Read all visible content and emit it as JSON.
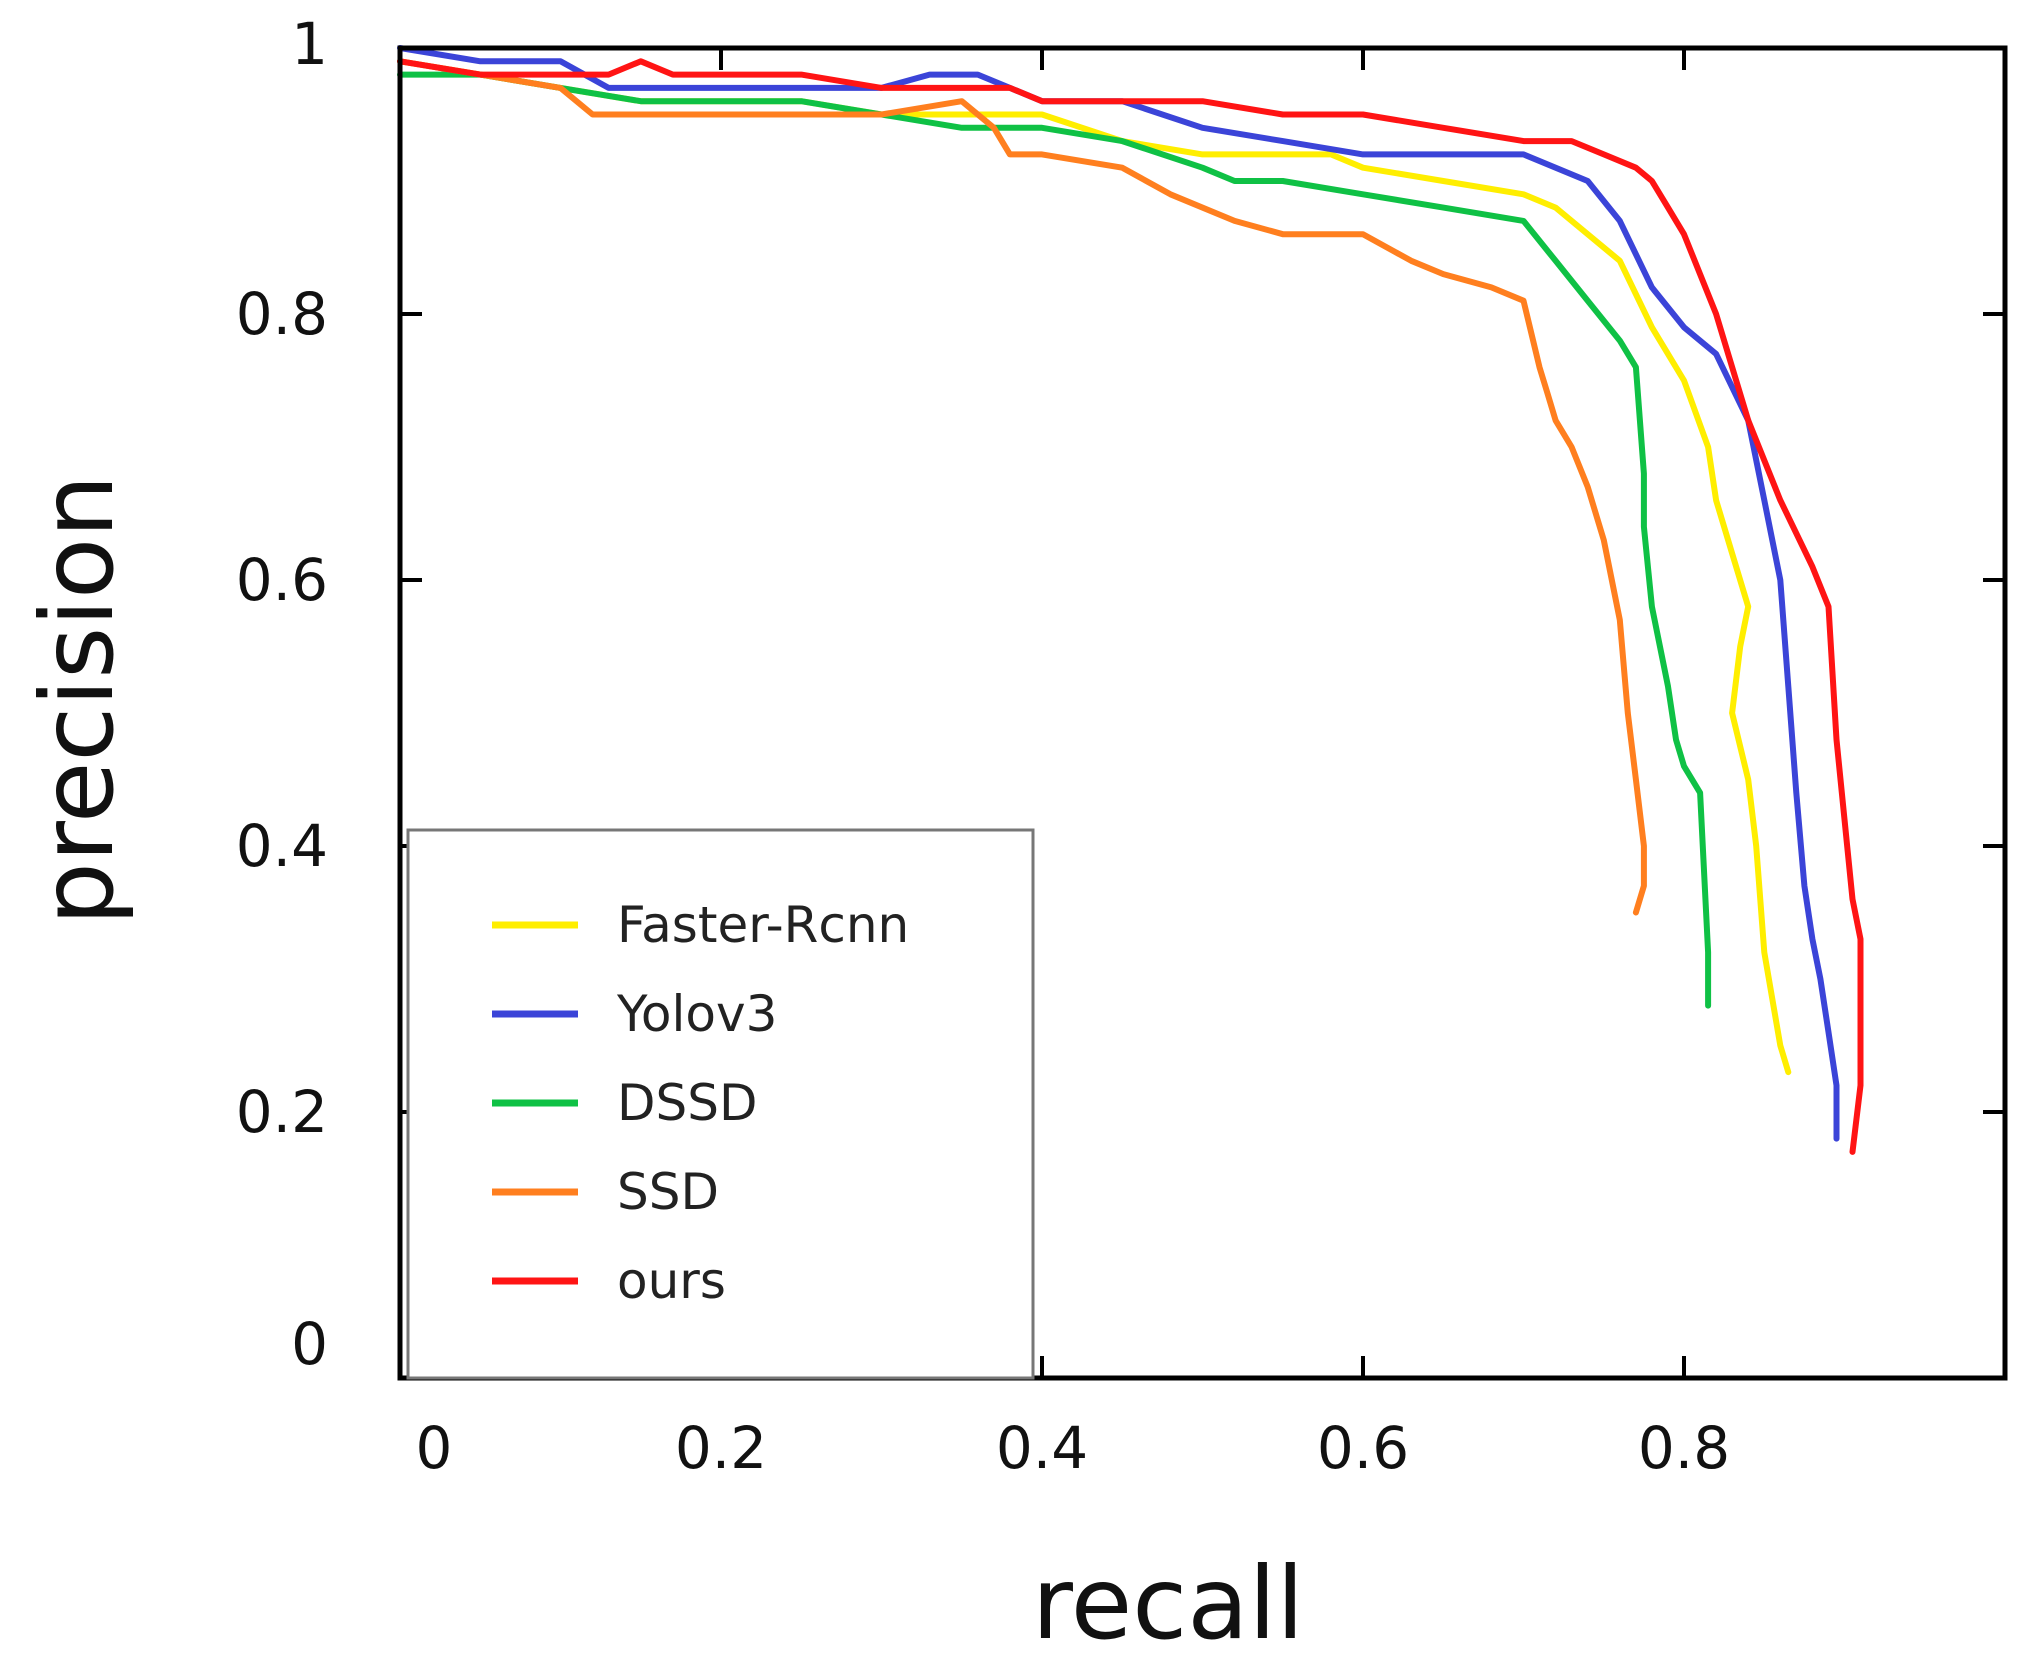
{
  "chart_data": {
    "type": "line",
    "xlabel": "recall",
    "ylabel": "precision",
    "xlim": [
      0,
      1
    ],
    "ylim": [
      0,
      1
    ],
    "x_ticks": [
      "0",
      "0.2",
      "0.4",
      "0.6",
      "0.8"
    ],
    "y_ticks": [
      "0",
      "0.2",
      "0.4",
      "0.6",
      "0.8",
      "1"
    ],
    "x_tick_values": [
      0,
      0.2,
      0.4,
      0.6,
      0.8
    ],
    "y_tick_values": [
      0,
      0.2,
      0.4,
      0.6,
      0.8,
      1
    ],
    "legend_position": "lower-left",
    "series": [
      {
        "name": "Faster-Rcnn",
        "color": "#ffee00",
        "x": [
          0.0,
          0.05,
          0.1,
          0.15,
          0.2,
          0.25,
          0.3,
          0.35,
          0.4,
          0.45,
          0.5,
          0.55,
          0.58,
          0.6,
          0.65,
          0.7,
          0.72,
          0.74,
          0.76,
          0.78,
          0.8,
          0.815,
          0.82,
          0.83,
          0.84,
          0.835,
          0.83,
          0.84,
          0.845,
          0.85,
          0.86,
          0.865
        ],
        "y": [
          0.99,
          0.98,
          0.97,
          0.96,
          0.96,
          0.96,
          0.95,
          0.95,
          0.95,
          0.93,
          0.92,
          0.92,
          0.92,
          0.91,
          0.9,
          0.89,
          0.88,
          0.86,
          0.84,
          0.79,
          0.75,
          0.7,
          0.66,
          0.62,
          0.58,
          0.55,
          0.5,
          0.45,
          0.4,
          0.32,
          0.25,
          0.23
        ]
      },
      {
        "name": "Yolov3",
        "color": "#3b44d8",
        "x": [
          0.0,
          0.05,
          0.1,
          0.13,
          0.15,
          0.2,
          0.25,
          0.3,
          0.33,
          0.36,
          0.38,
          0.4,
          0.45,
          0.5,
          0.55,
          0.6,
          0.65,
          0.7,
          0.74,
          0.76,
          0.78,
          0.8,
          0.82,
          0.84,
          0.85,
          0.86,
          0.865,
          0.87,
          0.875,
          0.88,
          0.885,
          0.89,
          0.895,
          0.895
        ],
        "y": [
          1.0,
          0.99,
          0.99,
          0.97,
          0.97,
          0.97,
          0.97,
          0.97,
          0.98,
          0.98,
          0.97,
          0.96,
          0.96,
          0.94,
          0.93,
          0.92,
          0.92,
          0.92,
          0.9,
          0.87,
          0.82,
          0.79,
          0.77,
          0.72,
          0.66,
          0.6,
          0.52,
          0.44,
          0.37,
          0.33,
          0.3,
          0.26,
          0.22,
          0.18
        ]
      },
      {
        "name": "DSSD",
        "color": "#0fc145",
        "x": [
          0.0,
          0.05,
          0.1,
          0.15,
          0.2,
          0.25,
          0.3,
          0.35,
          0.4,
          0.45,
          0.5,
          0.52,
          0.55,
          0.6,
          0.65,
          0.7,
          0.72,
          0.74,
          0.76,
          0.77,
          0.775,
          0.775,
          0.78,
          0.79,
          0.795,
          0.8,
          0.81,
          0.815,
          0.815
        ],
        "y": [
          0.98,
          0.98,
          0.97,
          0.96,
          0.96,
          0.96,
          0.95,
          0.94,
          0.94,
          0.93,
          0.91,
          0.9,
          0.9,
          0.89,
          0.88,
          0.87,
          0.84,
          0.81,
          0.78,
          0.76,
          0.68,
          0.64,
          0.58,
          0.52,
          0.48,
          0.46,
          0.44,
          0.32,
          0.28
        ]
      },
      {
        "name": "SSD",
        "color": "#ff7f1f",
        "x": [
          0.0,
          0.05,
          0.1,
          0.12,
          0.15,
          0.2,
          0.25,
          0.3,
          0.35,
          0.37,
          0.38,
          0.4,
          0.45,
          0.48,
          0.52,
          0.55,
          0.6,
          0.63,
          0.65,
          0.68,
          0.7,
          0.71,
          0.715,
          0.72,
          0.73,
          0.74,
          0.75,
          0.76,
          0.765,
          0.77,
          0.775,
          0.775,
          0.77
        ],
        "y": [
          0.99,
          0.98,
          0.97,
          0.95,
          0.95,
          0.95,
          0.95,
          0.95,
          0.96,
          0.94,
          0.92,
          0.92,
          0.91,
          0.89,
          0.87,
          0.86,
          0.86,
          0.84,
          0.83,
          0.82,
          0.81,
          0.76,
          0.74,
          0.72,
          0.7,
          0.67,
          0.63,
          0.57,
          0.5,
          0.45,
          0.4,
          0.37,
          0.35
        ]
      },
      {
        "name": "ours",
        "color": "#ff1414",
        "x": [
          0.0,
          0.05,
          0.1,
          0.13,
          0.15,
          0.17,
          0.2,
          0.25,
          0.3,
          0.35,
          0.38,
          0.4,
          0.45,
          0.5,
          0.55,
          0.6,
          0.65,
          0.7,
          0.73,
          0.75,
          0.77,
          0.78,
          0.79,
          0.8,
          0.82,
          0.84,
          0.86,
          0.88,
          0.89,
          0.895,
          0.9,
          0.905,
          0.91,
          0.91,
          0.905
        ],
        "y": [
          0.99,
          0.98,
          0.98,
          0.98,
          0.99,
          0.98,
          0.98,
          0.98,
          0.97,
          0.97,
          0.97,
          0.96,
          0.96,
          0.96,
          0.95,
          0.95,
          0.94,
          0.93,
          0.93,
          0.92,
          0.91,
          0.9,
          0.88,
          0.86,
          0.8,
          0.72,
          0.66,
          0.61,
          0.58,
          0.48,
          0.42,
          0.36,
          0.33,
          0.22,
          0.17
        ]
      }
    ]
  }
}
